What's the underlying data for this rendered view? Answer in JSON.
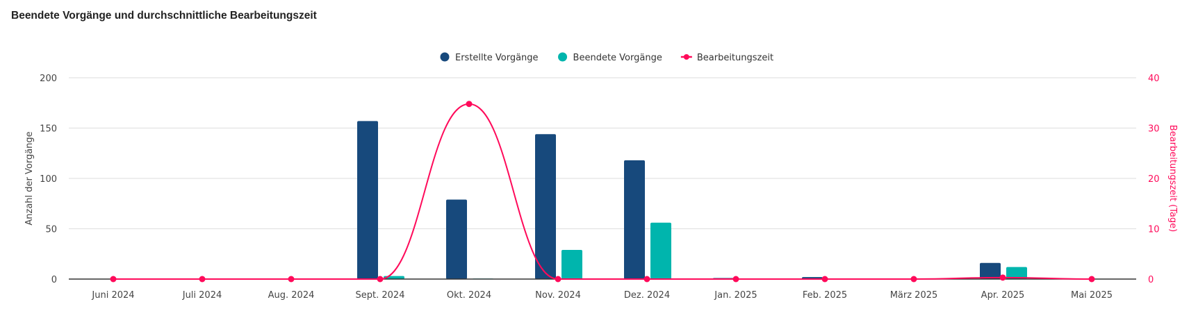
{
  "chart_data": {
    "type": "bar",
    "title": "Beendete Vorgänge und durchschnittliche Bearbeitungszeit",
    "categories": [
      "Juni 2024",
      "Juli 2024",
      "Aug. 2024",
      "Sept. 2024",
      "Okt. 2024",
      "Nov. 2024",
      "Dez. 2024",
      "Jan. 2025",
      "Feb. 2025",
      "März 2025",
      "Apr. 2025",
      "Mai 2025"
    ],
    "series": [
      {
        "name": "Erstellte Vorgänge",
        "type": "bar",
        "axis": "left",
        "color": "#17497c",
        "values": [
          0,
          0,
          0,
          157,
          79,
          144,
          118,
          1,
          2,
          0,
          16,
          0
        ]
      },
      {
        "name": "Beendete Vorgänge",
        "type": "bar",
        "axis": "left",
        "color": "#00b5ad",
        "values": [
          0,
          0,
          0,
          3,
          0.5,
          29,
          56,
          0.5,
          0,
          0,
          12,
          0
        ]
      },
      {
        "name": "Bearbeitungszeit",
        "type": "line",
        "axis": "right",
        "color": "#ff0a5a",
        "values": [
          0,
          0,
          0,
          0,
          34.8,
          0,
          0,
          0,
          0,
          0,
          0.3,
          0
        ]
      }
    ],
    "ylabel": "Anzahl der Vorgänge",
    "ylim": [
      0,
      200
    ],
    "yticks": [
      "0",
      "50",
      "100",
      "150",
      "200"
    ],
    "y2label": "Bearbeitungszeit (Tage)",
    "y2lim": [
      0,
      40
    ],
    "y2ticks": [
      "0",
      "10",
      "20",
      "30",
      "40"
    ],
    "grid": true,
    "legend_position": "top-center"
  }
}
